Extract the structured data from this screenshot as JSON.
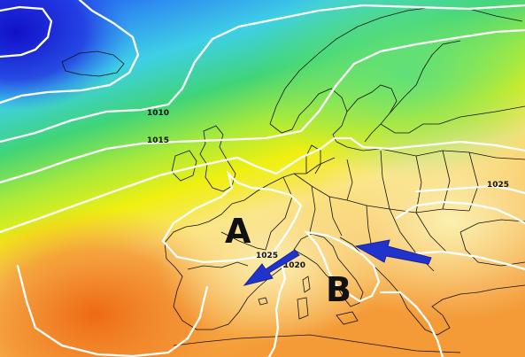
{
  "map": {
    "isobar_labels": [
      "1010",
      "1015",
      "1025",
      "1025",
      "1020"
    ],
    "pressure_centers": [
      {
        "label": "A",
        "meaning": "high pressure"
      },
      {
        "label": "B",
        "meaning": "low pressure"
      }
    ],
    "arrows": [
      {
        "name": "arrow-west",
        "color": "#2233cc"
      },
      {
        "name": "arrow-east",
        "color": "#2233cc"
      }
    ],
    "colors": {
      "deep_low": "#1520d8",
      "low": "#2a6cf0",
      "mid_cyan": "#38c6ea",
      "mid_green": "#40d060",
      "yellow_green": "#c8ee3a",
      "yellow": "#f2f20a",
      "pale_yellow": "#fbeea0",
      "orange": "#f6a640",
      "deep_orange": "#f07018",
      "isobar": "#ffffff",
      "coastline": "#111111"
    }
  }
}
